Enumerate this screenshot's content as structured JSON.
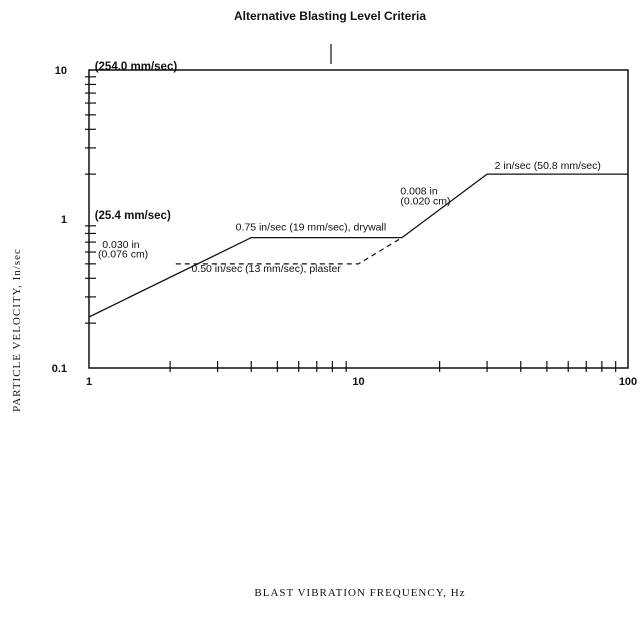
{
  "chart_data": {
    "type": "line",
    "title": "Alternative Blasting Level Criteria",
    "xlabel": "BLAST VIBRATION FREQUENCY, Hz",
    "ylabel": "PARTICLE VELOCITY, In/sec",
    "x_scale": "log",
    "y_scale": "log",
    "xlim": [
      1,
      100
    ],
    "ylim": [
      0.1,
      10
    ],
    "x_tick_labels": [
      "1",
      "10",
      "100"
    ],
    "y_tick_labels": [
      "0.1",
      "1",
      "10"
    ],
    "grid": false,
    "series": [
      {
        "style": "solid",
        "x": [
          1,
          4,
          14.5,
          30,
          100
        ],
        "y": [
          0.22,
          0.75,
          0.75,
          2.0,
          2.0
        ]
      },
      {
        "style": "dashed",
        "x": [
          2.1,
          10,
          14.5
        ],
        "y": [
          0.5,
          0.5,
          0.75
        ]
      }
    ],
    "annotations": [
      {
        "text": "(254.0 mm/sec)",
        "x": 1.05,
        "y": 10
      },
      {
        "text": "(25.4 mm/sec)",
        "x": 1.05,
        "y": 1
      },
      {
        "text": "0.75 in/sec (19 mm/sec), drywall",
        "x": 3.5,
        "y": 0.84
      },
      {
        "text": "0.50 in/sec (13 mm/sec), plaster",
        "x": 2.4,
        "y": 0.44
      },
      {
        "text": "0.030 in",
        "x": 1.12,
        "y": 0.64
      },
      {
        "text": "(0.076 cm)",
        "x": 1.08,
        "y": 0.55
      },
      {
        "text": "0.008 in",
        "x": 14.3,
        "y": 1.46
      },
      {
        "text": "(0.020 cm)",
        "x": 14.3,
        "y": 1.25
      },
      {
        "text": "2 in/sec (50.8 mm/sec)",
        "x": 32,
        "y": 2.16
      }
    ]
  }
}
